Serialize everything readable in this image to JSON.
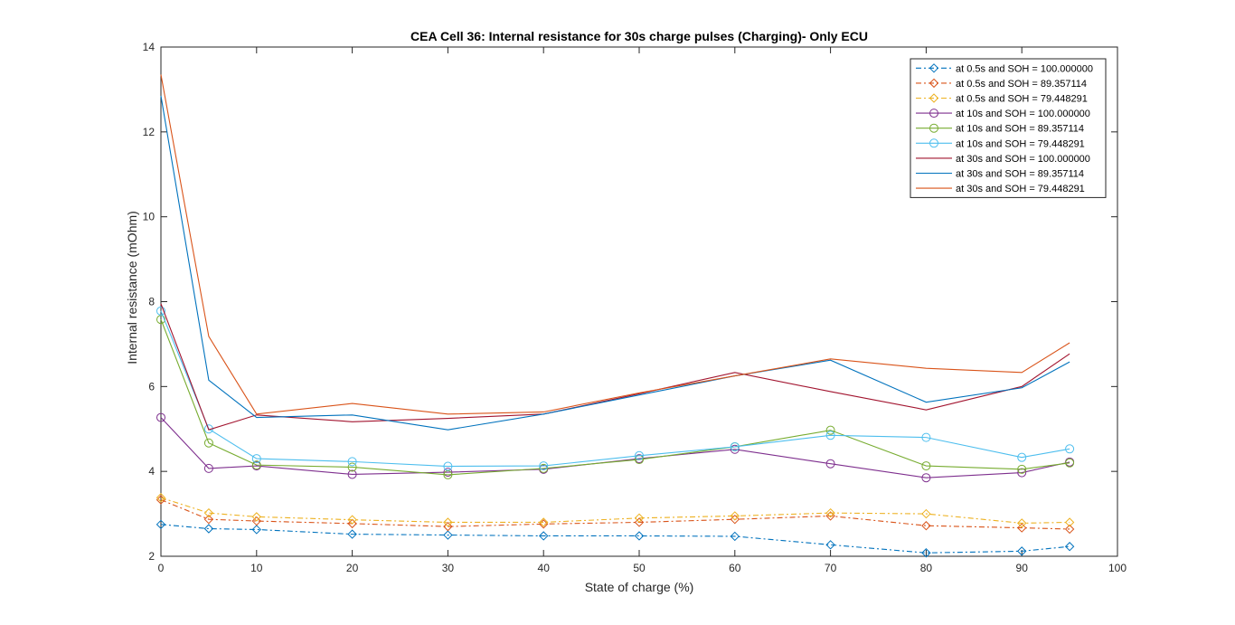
{
  "chart_data": {
    "type": "line",
    "title": "CEA Cell 36: Internal resistance for 30s charge pulses (Charging)- Only ECU",
    "xlabel": "State of charge (%)",
    "ylabel": "Internal resistance (mOhm)",
    "xlim": [
      0,
      100
    ],
    "ylim": [
      2,
      14
    ],
    "xticks": [
      0,
      10,
      20,
      30,
      40,
      50,
      60,
      70,
      80,
      90,
      100
    ],
    "yticks": [
      2,
      4,
      6,
      8,
      10,
      12,
      14
    ],
    "xtick_labels": [
      "0",
      "10",
      "20",
      "30",
      "40",
      "50",
      "60",
      "70",
      "80",
      "90",
      "100"
    ],
    "ytick_labels": [
      "2",
      "4",
      "6",
      "8",
      "10",
      "12",
      "14"
    ],
    "legend_position": "top-right",
    "grid": false,
    "x": [
      0,
      5,
      10,
      20,
      30,
      40,
      50,
      60,
      70,
      80,
      90,
      95
    ],
    "series": [
      {
        "name": "at 0.5s and SOH = 100.000000",
        "color": "#0072BD",
        "dash": "dashdot",
        "marker": "diamond",
        "values": [
          2.75,
          2.65,
          2.63,
          2.52,
          2.5,
          2.48,
          2.48,
          2.47,
          2.27,
          2.08,
          2.12,
          2.23
        ]
      },
      {
        "name": "at 0.5s and SOH = 89.357114",
        "color": "#D95319",
        "dash": "dashdot",
        "marker": "diamond",
        "values": [
          3.33,
          2.87,
          2.83,
          2.77,
          2.7,
          2.76,
          2.8,
          2.87,
          2.95,
          2.72,
          2.67,
          2.64
        ]
      },
      {
        "name": "at 0.5s and SOH = 79.448291",
        "color": "#EDB120",
        "dash": "dashdot",
        "marker": "diamond",
        "values": [
          3.38,
          3.02,
          2.93,
          2.86,
          2.8,
          2.8,
          2.9,
          2.95,
          3.02,
          3.0,
          2.78,
          2.8
        ]
      },
      {
        "name": "at 10s and SOH = 100.000000",
        "color": "#7E2F8E",
        "dash": "solid",
        "marker": "circle",
        "values": [
          5.27,
          4.07,
          4.13,
          3.93,
          3.98,
          4.05,
          4.3,
          4.52,
          4.18,
          3.85,
          3.97,
          4.22
        ]
      },
      {
        "name": "at 10s and SOH = 89.357114",
        "color": "#77AC30",
        "dash": "solid",
        "marker": "circle",
        "values": [
          7.58,
          4.67,
          4.15,
          4.1,
          3.92,
          4.07,
          4.28,
          4.58,
          4.97,
          4.13,
          4.05,
          4.2
        ]
      },
      {
        "name": "at 10s and SOH = 79.448291",
        "color": "#4DBEEE",
        "dash": "solid",
        "marker": "circle",
        "values": [
          7.78,
          5.0,
          4.3,
          4.23,
          4.12,
          4.13,
          4.37,
          4.58,
          4.85,
          4.8,
          4.33,
          4.53
        ]
      },
      {
        "name": "at 30s and SOH = 100.000000",
        "color": "#A2142F",
        "dash": "solid",
        "marker": "none",
        "values": [
          7.95,
          4.98,
          5.33,
          5.17,
          5.25,
          5.35,
          5.83,
          6.33,
          5.88,
          5.45,
          6.0,
          6.77
        ]
      },
      {
        "name": "at 30s and SOH = 89.357114",
        "color": "#0072BD",
        "dash": "solid",
        "marker": "none",
        "values": [
          12.85,
          6.15,
          5.27,
          5.33,
          4.98,
          5.35,
          5.8,
          6.25,
          6.62,
          5.63,
          5.97,
          6.58
        ]
      },
      {
        "name": "at 30s and SOH = 79.448291",
        "color": "#D95319",
        "dash": "solid",
        "marker": "none",
        "values": [
          13.35,
          7.18,
          5.35,
          5.6,
          5.35,
          5.4,
          5.85,
          6.25,
          6.65,
          6.43,
          6.33,
          7.03
        ]
      }
    ]
  }
}
